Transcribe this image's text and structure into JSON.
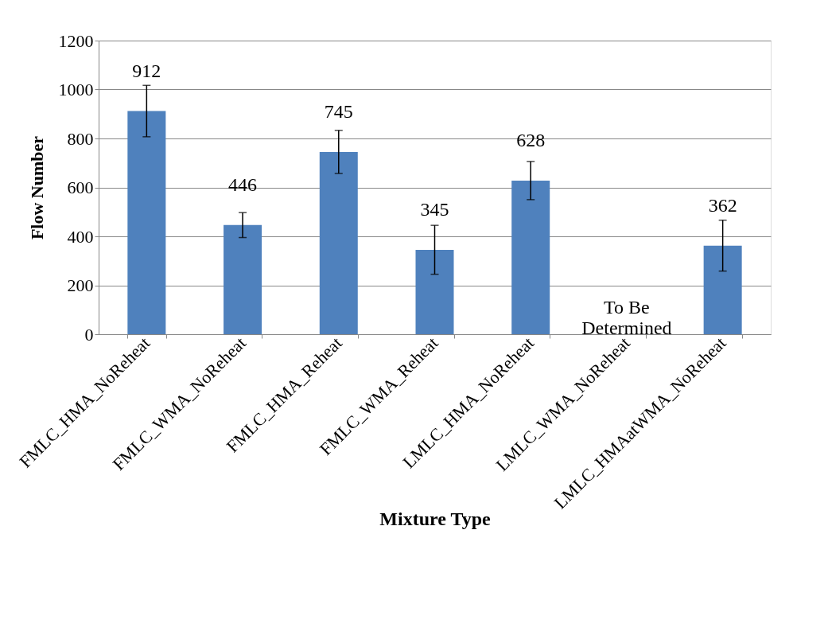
{
  "chart_data": {
    "type": "bar",
    "xlabel": "Mixture Type",
    "ylabel": "Flow Number",
    "categories": [
      "FMLC_HMA_NoReheat",
      "FMLC_WMA_NoReheat",
      "FMLC_HMA_Reheat",
      "FMLC_WMA_Reheat",
      "LMLC_HMA_NoReheat",
      "LMLC_WMA_NoReheat",
      "LMLC_HMAatWMA_NoReheat"
    ],
    "values": [
      912,
      446,
      745,
      345,
      628,
      null,
      362
    ],
    "errors": [
      105,
      51,
      88,
      100,
      78,
      null,
      104
    ],
    "color": "#4f81bd",
    "ylim": [
      0,
      1200
    ],
    "yticks": [
      0,
      200,
      400,
      600,
      800,
      1000,
      1200
    ],
    "grid": "y",
    "data_labels": true,
    "annotations": [
      "To Be Determined"
    ]
  }
}
